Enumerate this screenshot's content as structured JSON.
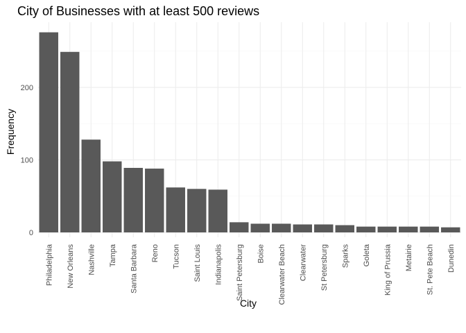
{
  "chart_data": {
    "type": "bar",
    "title": "City of Businesses with at least 500 reviews",
    "xlabel": "City",
    "ylabel": "Frequency",
    "categories": [
      "Philadelphia",
      "New Orleans",
      "Nashville",
      "Tampa",
      "Santa Barbara",
      "Reno",
      "Tucson",
      "Saint Louis",
      "Indianapolis",
      "Saint Petersburg",
      "Boise",
      "Clearwater Beach",
      "Clearwater",
      "St Petersburg",
      "Sparks",
      "Goleta",
      "King of Prussia",
      "Metairie",
      "St. Pete Beach",
      "Dunedin"
    ],
    "values": [
      276,
      249,
      128,
      98,
      89,
      88,
      62,
      60,
      59,
      14,
      12,
      12,
      11,
      11,
      10,
      8,
      8,
      8,
      8,
      7
    ],
    "yticks": [
      0,
      100,
      200
    ],
    "ylim": [
      0,
      290
    ],
    "grid": true,
    "legend": "none",
    "colors": {
      "bar": "#595959",
      "grid_major": "#ebebeb",
      "grid_minor": "#f5f5f5"
    }
  }
}
